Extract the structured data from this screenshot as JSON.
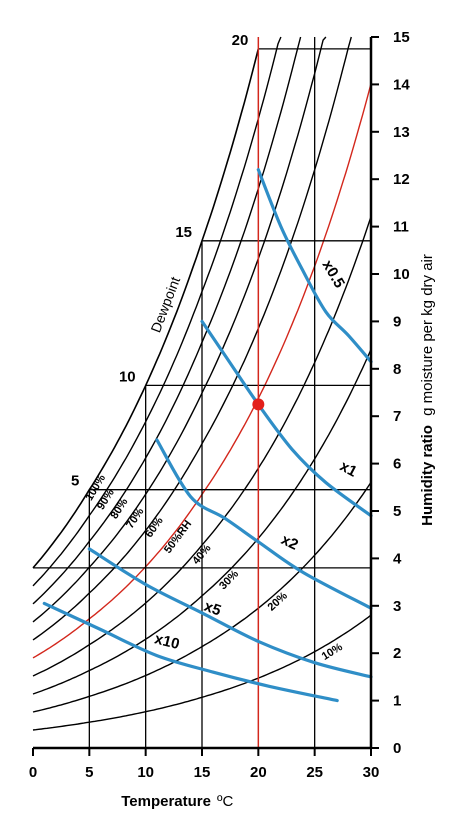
{
  "chart_data": {
    "type": "line",
    "title": "",
    "xlabel": "Temperature",
    "xunit": "ºC",
    "ylabel_bold": "Humidity ratio",
    "ylabel_rest": "g moisture per kg dry air",
    "xlim": [
      0,
      30
    ],
    "ylim": [
      0,
      15
    ],
    "x_ticks": [
      "0",
      "5",
      "10",
      "15",
      "20",
      "25",
      "30"
    ],
    "y_ticks": [
      "0",
      "1",
      "2",
      "3",
      "4",
      "5",
      "6",
      "7",
      "8",
      "9",
      "10",
      "11",
      "12",
      "13",
      "14",
      "15"
    ],
    "saturation_humidity_ratio": [
      [
        0,
        3.8
      ],
      [
        5,
        5.45
      ],
      [
        10,
        7.65
      ],
      [
        15,
        10.7
      ],
      [
        20,
        14.75
      ]
    ],
    "dewpoint_title": "Dewpoint",
    "dewpoint_levels": [
      {
        "label": "5",
        "t": 5,
        "w": 5.45
      },
      {
        "label": "10",
        "t": 10,
        "w": 7.65
      },
      {
        "label": "15",
        "t": 15,
        "w": 10.7
      },
      {
        "label": "20",
        "t": 20,
        "w": 14.75
      }
    ],
    "rh_curves": [
      {
        "rh": 100,
        "label": "100%"
      },
      {
        "rh": 90,
        "label": "90%"
      },
      {
        "rh": 80,
        "label": "80%"
      },
      {
        "rh": 70,
        "label": "70%"
      },
      {
        "rh": 60,
        "label": "60%"
      },
      {
        "rh": 50,
        "label": "50%RH"
      },
      {
        "rh": 40,
        "label": "40%"
      },
      {
        "rh": 30,
        "label": "30%"
      },
      {
        "rh": 20,
        "label": "20%"
      },
      {
        "rh": 10,
        "label": "10%"
      }
    ],
    "highlight_rh": 50,
    "highlight_temperature": 20,
    "reference_point": {
      "t": 20,
      "w": 7.25
    },
    "multiplier_curves": [
      {
        "label": "x0.5",
        "points": [
          [
            20,
            12.2
          ],
          [
            22,
            11.0
          ],
          [
            24,
            10.05
          ],
          [
            26,
            9.2
          ],
          [
            28,
            8.7
          ],
          [
            30,
            8.15
          ]
        ]
      },
      {
        "label": "x1",
        "points": [
          [
            15,
            9.0
          ],
          [
            17,
            8.3
          ],
          [
            20,
            7.25
          ],
          [
            23,
            6.3
          ],
          [
            26,
            5.6
          ],
          [
            30,
            4.9
          ]
        ]
      },
      {
        "label": "x2",
        "points": [
          [
            11,
            6.5
          ],
          [
            14,
            5.3
          ],
          [
            17,
            4.85
          ],
          [
            20,
            4.35
          ],
          [
            24,
            3.7
          ],
          [
            30,
            2.95
          ]
        ]
      },
      {
        "label": "x5",
        "points": [
          [
            5,
            4.2
          ],
          [
            10,
            3.45
          ],
          [
            15,
            2.85
          ],
          [
            20,
            2.25
          ],
          [
            25,
            1.8
          ],
          [
            30,
            1.5
          ]
        ]
      },
      {
        "label": "x10",
        "points": [
          [
            1,
            3.05
          ],
          [
            6,
            2.5
          ],
          [
            11,
            1.95
          ],
          [
            16,
            1.6
          ],
          [
            21,
            1.3
          ],
          [
            27,
            1.0
          ]
        ]
      }
    ],
    "colors": {
      "black": "#000000",
      "red": "#d3271c",
      "blue": "#2f8ec7",
      "point": "#e3201b"
    },
    "grid": false,
    "legend": "none"
  }
}
